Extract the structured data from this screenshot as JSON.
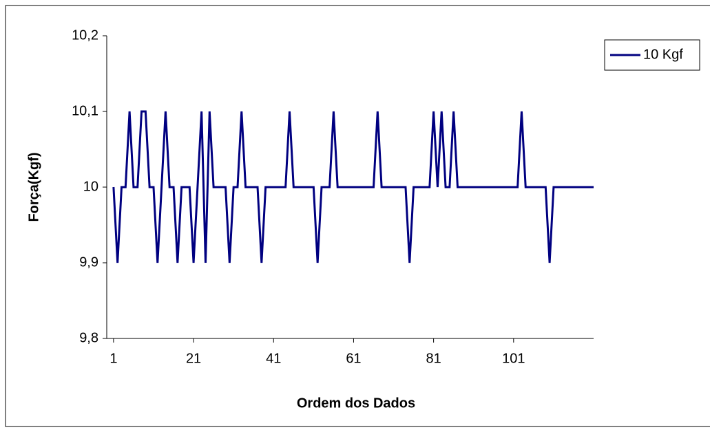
{
  "chart_data": {
    "type": "line",
    "x_label": "Ordem dos Dados",
    "y_label": "Força(Kgf)",
    "x": [
      1,
      2,
      3,
      4,
      5,
      6,
      7,
      8,
      9,
      10,
      11,
      12,
      13,
      14,
      15,
      16,
      17,
      18,
      19,
      20,
      21,
      22,
      23,
      24,
      25,
      26,
      27,
      28,
      29,
      30,
      31,
      32,
      33,
      34,
      35,
      36,
      37,
      38,
      39,
      40,
      41,
      42,
      43,
      44,
      45,
      46,
      47,
      48,
      49,
      50,
      51,
      52,
      53,
      54,
      55,
      56,
      57,
      58,
      59,
      60,
      61,
      62,
      63,
      64,
      65,
      66,
      67,
      68,
      69,
      70,
      71,
      72,
      73,
      74,
      75,
      76,
      77,
      78,
      79,
      80,
      81,
      82,
      83,
      84,
      85,
      86,
      87,
      88,
      89,
      90,
      91,
      92,
      93,
      94,
      95,
      96,
      97,
      98,
      99,
      100,
      101,
      102,
      103,
      104,
      105,
      106,
      107,
      108,
      109,
      110,
      111,
      112,
      113,
      114,
      115,
      116,
      117,
      118,
      119,
      120,
      121
    ],
    "series": [
      {
        "name": "10 Kgf",
        "color": "#000080",
        "values": [
          10,
          9.9,
          10,
          10,
          10.1,
          10,
          10,
          10.1,
          10.1,
          10,
          10,
          9.9,
          10,
          10.1,
          10,
          10,
          9.9,
          10,
          10,
          10,
          9.9,
          10,
          10.1,
          9.9,
          10.1,
          10,
          10,
          10,
          10,
          9.9,
          10,
          10,
          10.1,
          10,
          10,
          10,
          10,
          9.9,
          10,
          10,
          10,
          10,
          10,
          10,
          10.1,
          10,
          10,
          10,
          10,
          10,
          10,
          9.9,
          10,
          10,
          10,
          10.1,
          10,
          10,
          10,
          10,
          10,
          10,
          10,
          10,
          10,
          10,
          10.1,
          10,
          10,
          10,
          10,
          10,
          10,
          10,
          9.9,
          10,
          10,
          10,
          10,
          10,
          10.1,
          10,
          10.1,
          10,
          10,
          10.1,
          10,
          10,
          10,
          10,
          10,
          10,
          10,
          10,
          10,
          10,
          10,
          10,
          10,
          10,
          10,
          10,
          10.1,
          10,
          10,
          10,
          10,
          10,
          10,
          9.9,
          10,
          10,
          10,
          10,
          10,
          10,
          10,
          10,
          10,
          10,
          10
        ]
      }
    ],
    "xlim": [
      -0.7,
      121
    ],
    "xticks": [
      1,
      21,
      41,
      61,
      81,
      101
    ],
    "ylim": [
      9.8,
      10.2
    ],
    "yticks": [
      {
        "value": 9.8,
        "label": "9,8"
      },
      {
        "value": 9.9,
        "label": "9,9"
      },
      10,
      {
        "value": 10.1,
        "label": "10,1"
      },
      {
        "value": 10.2,
        "label": "10,2"
      }
    ],
    "grid": false,
    "legend": "right"
  }
}
